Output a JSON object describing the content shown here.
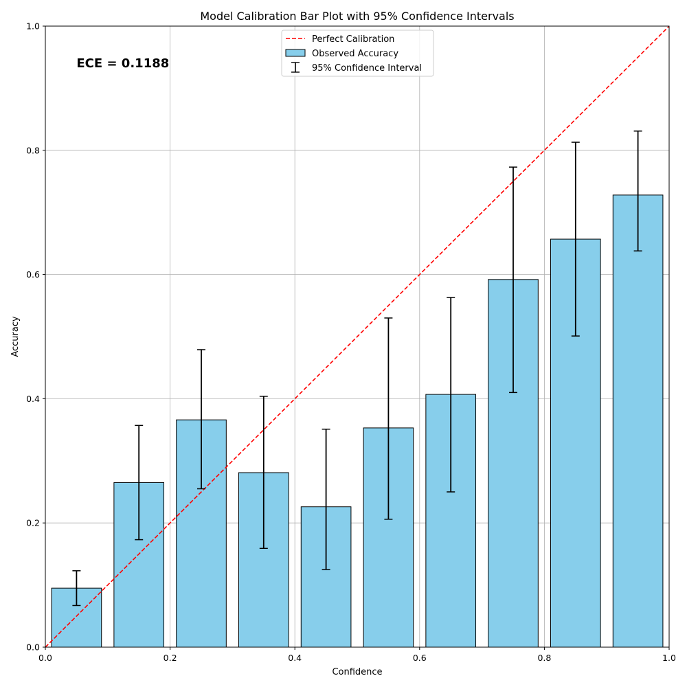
{
  "chart_data": {
    "type": "bar",
    "title": "Model Calibration Bar Plot with 95% Confidence Intervals",
    "xlabel": "Confidence",
    "ylabel": "Accuracy",
    "xlim": [
      0,
      1
    ],
    "ylim": [
      0,
      1
    ],
    "grid": true,
    "legend_position": "top-center",
    "x_ticks": [
      0.0,
      0.2,
      0.4,
      0.6,
      0.8,
      1.0
    ],
    "y_ticks": [
      0.0,
      0.2,
      0.4,
      0.6,
      0.8,
      1.0
    ],
    "tick_labels_x": [
      "0.0",
      "0.2",
      "0.4",
      "0.6",
      "0.8",
      "1.0"
    ],
    "tick_labels_y": [
      "0.0",
      "0.2",
      "0.4",
      "0.6",
      "0.8",
      "1.0"
    ],
    "bin_width": 0.08,
    "bin_centers": [
      0.05,
      0.15,
      0.25,
      0.35,
      0.45,
      0.55,
      0.65,
      0.75,
      0.85,
      0.95
    ],
    "series": [
      {
        "name": "Observed Accuracy",
        "kind": "bar",
        "color": "#87CEEB",
        "edge_color": "#000000",
        "values": [
          0.095,
          0.265,
          0.366,
          0.281,
          0.226,
          0.353,
          0.407,
          0.592,
          0.657,
          0.728
        ]
      },
      {
        "name": "95% Confidence Interval",
        "kind": "errorbar",
        "color": "#000000",
        "lower": [
          0.067,
          0.173,
          0.255,
          0.159,
          0.125,
          0.206,
          0.25,
          0.41,
          0.501,
          0.638
        ],
        "upper": [
          0.123,
          0.357,
          0.479,
          0.404,
          0.351,
          0.53,
          0.563,
          0.773,
          0.813,
          0.831
        ]
      },
      {
        "name": "Perfect Calibration",
        "kind": "line",
        "color": "#ff0000",
        "dash": "dashed",
        "x": [
          0,
          1
        ],
        "y": [
          0,
          1
        ]
      }
    ],
    "annotations": [
      {
        "text": "ECE = 0.1188",
        "x": 0.05,
        "y": 0.94
      }
    ]
  }
}
